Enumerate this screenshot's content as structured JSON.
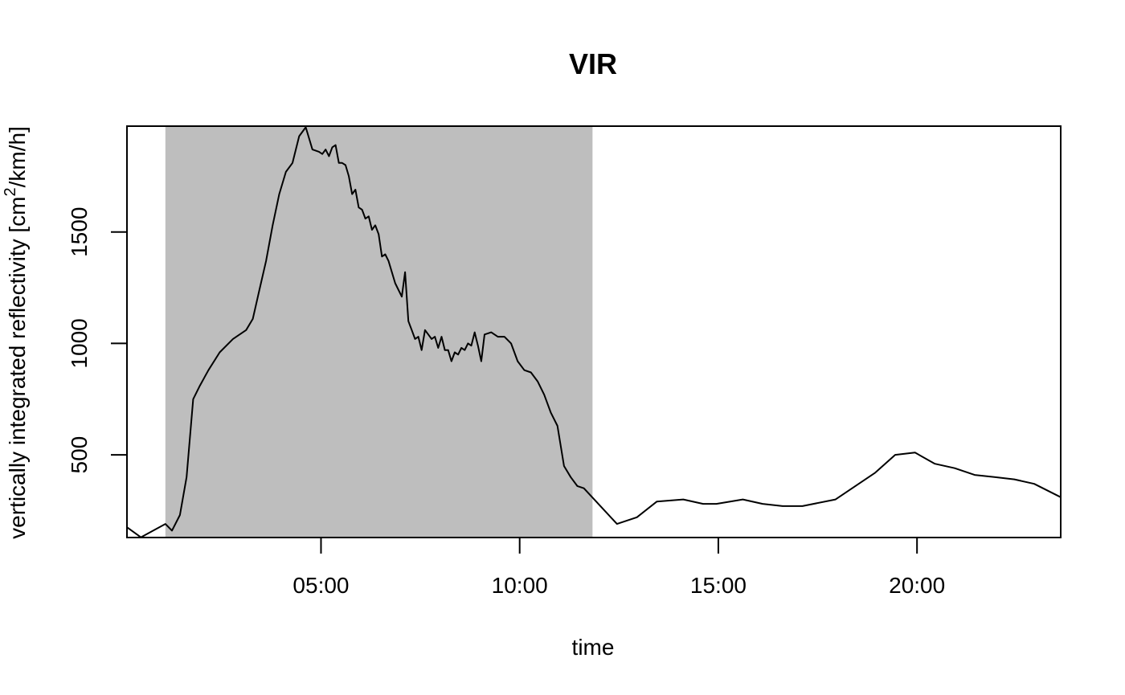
{
  "chart_data": {
    "type": "line",
    "title": "VIR",
    "xlabel": "time",
    "ylabel_text": "vertically integrated reflectivity [cm",
    "ylabel_superscript": "2",
    "ylabel_suffix": "/km/h]",
    "xlim": [
      "00:07",
      "23:37"
    ],
    "ylim": [
      129,
      1975
    ],
    "x_ticks": [
      {
        "time": "05:00",
        "label": "05:00"
      },
      {
        "time": "10:00",
        "label": "10:00"
      },
      {
        "time": "15:00",
        "label": "15:00"
      },
      {
        "time": "20:00",
        "label": "20:00"
      }
    ],
    "y_ticks": [
      {
        "value": 500,
        "label": "500"
      },
      {
        "value": 1000,
        "label": "1000"
      },
      {
        "value": 1500,
        "label": "1500"
      }
    ],
    "shaded_interval": {
      "start": "01:05",
      "end": "11:50",
      "color": "#bebebe"
    },
    "line_color": "#000000",
    "series": [
      {
        "points": [
          [
            "00:07",
            175
          ],
          [
            "00:28",
            130
          ],
          [
            "01:05",
            190
          ],
          [
            "01:15",
            160
          ],
          [
            "01:27",
            230
          ],
          [
            "01:37",
            400
          ],
          [
            "01:47",
            750
          ],
          [
            "01:57",
            810
          ],
          [
            "02:10",
            880
          ],
          [
            "02:27",
            960
          ],
          [
            "02:47",
            1020
          ],
          [
            "03:07",
            1060
          ],
          [
            "03:17",
            1110
          ],
          [
            "03:27",
            1240
          ],
          [
            "03:37",
            1370
          ],
          [
            "03:47",
            1530
          ],
          [
            "03:57",
            1670
          ],
          [
            "04:07",
            1770
          ],
          [
            "04:17",
            1810
          ],
          [
            "04:27",
            1930
          ],
          [
            "04:37",
            1970
          ],
          [
            "04:47",
            1870
          ],
          [
            "04:57",
            1860
          ],
          [
            "05:02",
            1850
          ],
          [
            "05:07",
            1870
          ],
          [
            "05:12",
            1840
          ],
          [
            "05:17",
            1880
          ],
          [
            "05:22",
            1890
          ],
          [
            "05:27",
            1810
          ],
          [
            "05:32",
            1810
          ],
          [
            "05:37",
            1800
          ],
          [
            "05:42",
            1750
          ],
          [
            "05:47",
            1670
          ],
          [
            "05:52",
            1690
          ],
          [
            "05:57",
            1610
          ],
          [
            "06:02",
            1600
          ],
          [
            "06:07",
            1560
          ],
          [
            "06:12",
            1570
          ],
          [
            "06:17",
            1510
          ],
          [
            "06:22",
            1530
          ],
          [
            "06:27",
            1490
          ],
          [
            "06:32",
            1390
          ],
          [
            "06:37",
            1400
          ],
          [
            "06:42",
            1370
          ],
          [
            "06:52",
            1270
          ],
          [
            "07:02",
            1210
          ],
          [
            "07:07",
            1320
          ],
          [
            "07:12",
            1100
          ],
          [
            "07:17",
            1060
          ],
          [
            "07:22",
            1020
          ],
          [
            "07:27",
            1030
          ],
          [
            "07:32",
            970
          ],
          [
            "07:37",
            1060
          ],
          [
            "07:42",
            1040
          ],
          [
            "07:47",
            1020
          ],
          [
            "07:52",
            1030
          ],
          [
            "07:57",
            980
          ],
          [
            "08:02",
            1030
          ],
          [
            "08:07",
            970
          ],
          [
            "08:12",
            970
          ],
          [
            "08:17",
            920
          ],
          [
            "08:22",
            960
          ],
          [
            "08:27",
            950
          ],
          [
            "08:32",
            980
          ],
          [
            "08:37",
            970
          ],
          [
            "08:42",
            1000
          ],
          [
            "08:47",
            990
          ],
          [
            "08:52",
            1050
          ],
          [
            "08:57",
            990
          ],
          [
            "09:02",
            920
          ],
          [
            "09:07",
            1040
          ],
          [
            "09:17",
            1050
          ],
          [
            "09:27",
            1030
          ],
          [
            "09:37",
            1030
          ],
          [
            "09:47",
            1000
          ],
          [
            "09:57",
            920
          ],
          [
            "10:07",
            880
          ],
          [
            "10:17",
            870
          ],
          [
            "10:27",
            830
          ],
          [
            "10:37",
            770
          ],
          [
            "10:47",
            690
          ],
          [
            "10:57",
            630
          ],
          [
            "11:07",
            450
          ],
          [
            "11:17",
            400
          ],
          [
            "11:27",
            360
          ],
          [
            "11:37",
            350
          ],
          [
            "12:27",
            190
          ],
          [
            "12:57",
            220
          ],
          [
            "13:27",
            290
          ],
          [
            "14:07",
            300
          ],
          [
            "14:37",
            280
          ],
          [
            "14:57",
            280
          ],
          [
            "15:37",
            300
          ],
          [
            "16:07",
            280
          ],
          [
            "16:37",
            270
          ],
          [
            "17:07",
            270
          ],
          [
            "17:57",
            300
          ],
          [
            "18:57",
            420
          ],
          [
            "19:27",
            500
          ],
          [
            "19:57",
            510
          ],
          [
            "20:27",
            460
          ],
          [
            "20:57",
            440
          ],
          [
            "21:27",
            410
          ],
          [
            "21:57",
            400
          ],
          [
            "22:27",
            390
          ],
          [
            "22:57",
            370
          ],
          [
            "23:37",
            310
          ]
        ]
      }
    ]
  }
}
